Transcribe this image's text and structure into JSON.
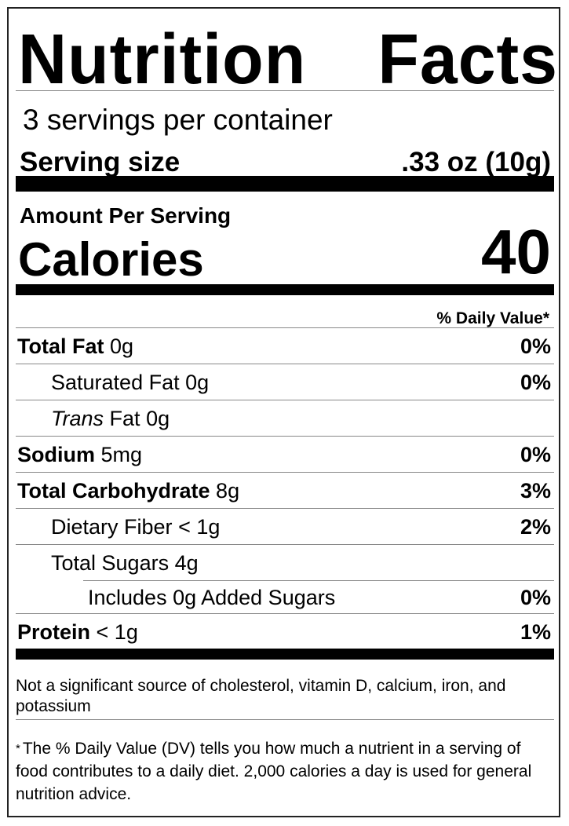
{
  "title": {
    "word1": "Nutrition",
    "word2": "Facts"
  },
  "servings_per_container": "3 servings per container",
  "serving_size": {
    "label": "Serving size",
    "value": ".33 oz (10g)"
  },
  "amount_per_serving": "Amount Per Serving",
  "calories": {
    "label": "Calories",
    "value": "40"
  },
  "daily_value_header": "% Daily Value*",
  "nutrients": [
    {
      "name": "Total Fat",
      "amount": "0g",
      "dv": "0%",
      "bold": true,
      "indent": 0
    },
    {
      "name": "Saturated Fat",
      "amount": "0g",
      "dv": "0%",
      "bold": false,
      "indent": 1
    },
    {
      "name": "Trans",
      "name_suffix": "Fat",
      "amount": "0g",
      "dv": "",
      "bold": false,
      "indent": 1,
      "italic_prefix": true
    },
    {
      "name": "Sodium",
      "amount": "5mg",
      "dv": "0%",
      "bold": true,
      "indent": 0
    },
    {
      "name": "Total Carbohydrate",
      "amount": "8g",
      "dv": "3%",
      "bold": true,
      "indent": 0
    },
    {
      "name": "Dietary Fiber",
      "amount": "< 1g",
      "dv": "2%",
      "bold": false,
      "indent": 1
    },
    {
      "name": "Total Sugars",
      "amount": "4g",
      "dv": "",
      "bold": false,
      "indent": 1
    },
    {
      "name": "Includes 0g Added Sugars",
      "amount": "",
      "dv": "0%",
      "bold": false,
      "indent": 2
    },
    {
      "name": "Protein",
      "amount": "< 1g",
      "dv": "1%",
      "bold": true,
      "indent": 0
    }
  ],
  "not_significant_note": "Not a significant source of cholesterol, vitamin D, calcium, iron, and potassium",
  "footnote": {
    "asterisk": "*",
    "text": "The % Daily Value (DV) tells you how much a nutrient in a serving of food contributes to a daily diet. 2,000 calories a day is used for general nutrition advice."
  }
}
